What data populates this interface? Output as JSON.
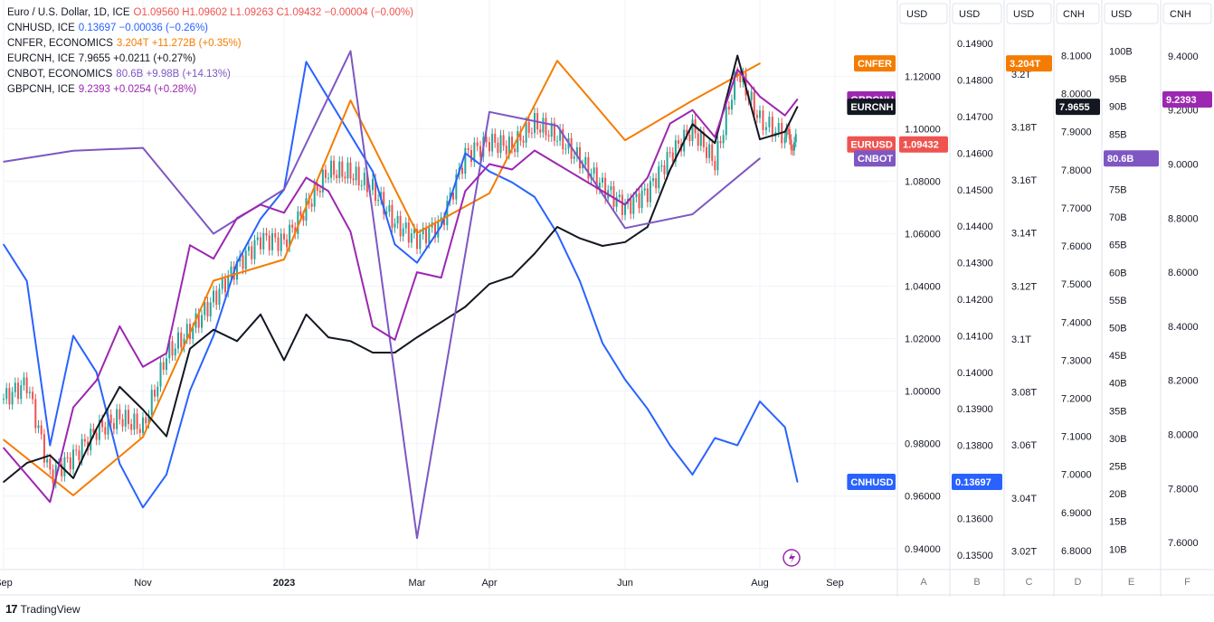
{
  "legend": [
    {
      "name": "Euro / U.S. Dollar, 1D, ICE",
      "values": "O1.09560  H1.09602  L1.09263  C1.09432  −0.00004 (−0.00%)",
      "color": "#ef5350"
    },
    {
      "name": "CNHUSD, ICE",
      "values": "0.13697  −0.00036 (−0.26%)",
      "color": "#2962ff"
    },
    {
      "name": "CNFER, ECONOMICS",
      "values": "3.204T  +11.272B (+0.35%)",
      "color": "#f57c00"
    },
    {
      "name": "EURCNH, ICE",
      "values": "7.9655  +0.0211 (+0.27%)",
      "color": "#131722"
    },
    {
      "name": "CNBOT, ECONOMICS",
      "values": "80.6B  +9.98B (+14.13%)",
      "color": "#7e57c2"
    },
    {
      "name": "GBPCNH, ICE",
      "values": "9.2393  +0.0254 (+0.28%)",
      "color": "#9c27b0"
    }
  ],
  "brand": "TradingView",
  "chart_data": {
    "type": "line",
    "title": "Euro / U.S. Dollar, 1D, ICE",
    "x_ticks": [
      "Sep",
      "Nov",
      "2023",
      "Mar",
      "Apr",
      "Jun",
      "Aug",
      "Sep"
    ],
    "x_tick_index": [
      0,
      60,
      120,
      180,
      210,
      270,
      330,
      360
    ],
    "x_range": [
      0,
      360
    ],
    "axes": [
      {
        "id": "A",
        "unit": "USD",
        "range": [
          0.932,
          1.138
        ],
        "ticks": [
          "1.12000",
          "1.10000",
          "1.08000",
          "1.06000",
          "1.04000",
          "1.02000",
          "1.00000",
          "0.98000",
          "0.96000",
          "0.94000"
        ],
        "tick_values": [
          1.12,
          1.1,
          1.08,
          1.06,
          1.04,
          1.02,
          1.0,
          0.98,
          0.96,
          0.94
        ]
      },
      {
        "id": "B",
        "unit": "USD",
        "range": [
          0.1346,
          0.1494
        ],
        "ticks": [
          "0.14900",
          "0.14800",
          "0.14700",
          "0.14600",
          "0.14500",
          "0.14400",
          "0.14300",
          "0.14200",
          "0.14100",
          "0.14000",
          "0.13900",
          "0.13800",
          "0.13700",
          "0.13600",
          "0.13500"
        ],
        "tick_values": [
          0.149,
          0.148,
          0.147,
          0.146,
          0.145,
          0.144,
          0.143,
          0.142,
          0.141,
          0.14,
          0.139,
          0.138,
          0.137,
          0.136,
          0.135
        ]
      },
      {
        "id": "C",
        "unit": "USD",
        "range": [
          3.013,
          3.217
        ],
        "ticks": [
          "3.2T",
          "3.18T",
          "3.16T",
          "3.14T",
          "3.12T",
          "3.1T",
          "3.08T",
          "3.06T",
          "3.04T",
          "3.02T"
        ],
        "tick_values": [
          3.2,
          3.18,
          3.16,
          3.14,
          3.12,
          3.1,
          3.08,
          3.06,
          3.04,
          3.02
        ]
      },
      {
        "id": "D",
        "unit": "CNH",
        "range": [
          6.75,
          8.17
        ],
        "ticks": [
          "8.1000",
          "8.0000",
          "7.9000",
          "7.8000",
          "7.7000",
          "7.6000",
          "7.5000",
          "7.4000",
          "7.3000",
          "7.2000",
          "7.1000",
          "7.0000",
          "6.9000",
          "6.8000"
        ],
        "tick_values": [
          8.1,
          8.0,
          7.9,
          7.8,
          7.7,
          7.6,
          7.5,
          7.4,
          7.3,
          7.2,
          7.1,
          7.0,
          6.9,
          6.8
        ]
      },
      {
        "id": "E",
        "unit": "USD",
        "range": [
          6.3,
          104
        ],
        "ticks": [
          "100B",
          "95B",
          "90B",
          "85B",
          "80B",
          "75B",
          "70B",
          "65B",
          "60B",
          "55B",
          "50B",
          "45B",
          "40B",
          "35B",
          "30B",
          "25B",
          "20B",
          "15B",
          "10B"
        ],
        "tick_values": [
          100,
          95,
          90,
          85,
          80,
          75,
          70,
          65,
          60,
          55,
          50,
          45,
          40,
          35,
          30,
          25,
          20,
          15,
          10
        ]
      },
      {
        "id": "F",
        "unit": "CNH",
        "range": [
          7.5,
          9.5
        ],
        "ticks": [
          "9.4000",
          "9.2000",
          "9.0000",
          "8.8000",
          "8.6000",
          "8.4000",
          "8.2000",
          "8.0000",
          "7.8000",
          "7.6000"
        ],
        "tick_values": [
          9.4,
          9.2,
          9.0,
          8.8,
          8.6,
          8.4,
          8.2,
          8.0,
          7.8,
          7.6
        ]
      }
    ],
    "series": [
      {
        "name": "EURUSD",
        "axis": "A",
        "kind": "candlestick",
        "color_up": "#26a69a",
        "color_down": "#ef5350",
        "last": "1.09432",
        "x": [
          0,
          10,
          20,
          30,
          40,
          50,
          60,
          70,
          80,
          90,
          100,
          110,
          120,
          130,
          140,
          150,
          160,
          170,
          180,
          190,
          200,
          210,
          220,
          230,
          240,
          250,
          260,
          270,
          280,
          290,
          300,
          310,
          320,
          330,
          340,
          345
        ],
        "values": [
          0.997,
          1.003,
          0.968,
          0.975,
          0.985,
          0.99,
          0.986,
          1.014,
          1.023,
          1.035,
          1.048,
          1.058,
          1.057,
          1.07,
          1.084,
          1.083,
          1.077,
          1.064,
          1.058,
          1.064,
          1.09,
          1.095,
          1.093,
          1.102,
          1.097,
          1.088,
          1.078,
          1.07,
          1.076,
          1.09,
          1.1,
          1.087,
          1.122,
          1.103,
          1.097,
          1.094
        ]
      },
      {
        "name": "CNHUSD",
        "axis": "B",
        "color": "#2962ff",
        "last": "0.13697",
        "x": [
          0,
          10,
          20,
          30,
          40,
          50,
          60,
          70,
          80,
          90,
          100,
          110,
          120,
          130,
          140,
          150,
          160,
          170,
          180,
          190,
          200,
          210,
          220,
          230,
          240,
          250,
          260,
          270,
          280,
          290,
          300,
          310,
          320,
          330,
          340,
          345
        ],
        "values": [
          0.1435,
          0.1425,
          0.138,
          0.141,
          0.14,
          0.1375,
          0.1363,
          0.1372,
          0.1395,
          0.141,
          0.143,
          0.1442,
          0.145,
          0.1485,
          0.1475,
          0.1465,
          0.1455,
          0.1435,
          0.143,
          0.144,
          0.146,
          0.1455,
          0.1452,
          0.1448,
          0.1438,
          0.1425,
          0.1408,
          0.1398,
          0.139,
          0.138,
          0.1372,
          0.1382,
          0.138,
          0.1392,
          0.1385,
          0.137
        ]
      },
      {
        "name": "CNFER",
        "axis": "C",
        "color": "#f57c00",
        "last": "3.204T",
        "x": [
          0,
          30,
          60,
          90,
          120,
          150,
          180,
          210,
          240,
          270,
          300,
          330
        ],
        "values": [
          3.062,
          3.041,
          3.063,
          3.122,
          3.13,
          3.19,
          3.14,
          3.155,
          3.205,
          3.175,
          3.19,
          3.204
        ]
      },
      {
        "name": "EURCNH",
        "axis": "D",
        "color": "#131722",
        "last": "7.9655",
        "x": [
          0,
          10,
          20,
          30,
          40,
          50,
          60,
          70,
          80,
          90,
          100,
          110,
          120,
          130,
          140,
          150,
          160,
          170,
          180,
          190,
          200,
          210,
          220,
          230,
          240,
          250,
          260,
          270,
          280,
          290,
          300,
          310,
          320,
          330,
          340,
          345
        ],
        "values": [
          6.98,
          7.03,
          7.05,
          6.99,
          7.12,
          7.23,
          7.17,
          7.1,
          7.33,
          7.38,
          7.35,
          7.42,
          7.3,
          7.42,
          7.36,
          7.35,
          7.32,
          7.32,
          7.36,
          7.4,
          7.44,
          7.5,
          7.52,
          7.58,
          7.65,
          7.62,
          7.6,
          7.61,
          7.65,
          7.8,
          7.92,
          7.87,
          8.1,
          7.88,
          7.9,
          7.9655
        ]
      },
      {
        "name": "CNBOT",
        "axis": "E",
        "color": "#7e57c2",
        "last": "80.6B",
        "x": [
          0,
          30,
          60,
          90,
          120,
          150,
          180,
          210,
          240,
          270,
          300,
          330
        ],
        "values": [
          80.0,
          82.0,
          82.5,
          67.0,
          75.0,
          100.0,
          12.0,
          89.0,
          86.5,
          68.0,
          70.5,
          80.6
        ]
      },
      {
        "name": "GBPCNH",
        "axis": "F",
        "color": "#9c27b0",
        "last": "9.2393",
        "x": [
          0,
          10,
          20,
          30,
          40,
          50,
          60,
          70,
          80,
          90,
          100,
          110,
          120,
          130,
          140,
          150,
          160,
          170,
          180,
          190,
          200,
          210,
          220,
          230,
          240,
          250,
          260,
          270,
          280,
          290,
          300,
          310,
          320,
          330,
          340,
          345
        ],
        "values": [
          7.95,
          7.85,
          7.75,
          8.1,
          8.2,
          8.4,
          8.25,
          8.3,
          8.7,
          8.65,
          8.8,
          8.85,
          8.82,
          8.95,
          8.9,
          8.75,
          8.4,
          8.35,
          8.6,
          8.58,
          8.9,
          9.0,
          8.98,
          9.05,
          9.0,
          8.95,
          8.9,
          8.85,
          8.95,
          9.15,
          9.2,
          9.1,
          9.35,
          9.25,
          9.18,
          9.2393
        ]
      }
    ],
    "axis_tags": [
      {
        "axis": "A",
        "text": "1.09432",
        "color": "#ef5350"
      },
      {
        "axis": "B",
        "text": "0.13697",
        "color": "#2962ff"
      },
      {
        "axis": "C",
        "text": "3.204T",
        "color": "#f57c00"
      },
      {
        "axis": "D",
        "text": "7.9655",
        "color": "#131722"
      },
      {
        "axis": "E",
        "text": "80.6B",
        "color": "#7e57c2"
      },
      {
        "axis": "F",
        "text": "9.2393",
        "color": "#9c27b0"
      }
    ],
    "series_labels": [
      {
        "text": "CNFER",
        "color": "#f57c00"
      },
      {
        "text": "GBPCNH",
        "color": "#9c27b0"
      },
      {
        "text": "EURCNH",
        "color": "#131722"
      },
      {
        "text": "EURUSD",
        "color": "#ef5350"
      },
      {
        "text": "CNBOT",
        "color": "#7e57c2"
      },
      {
        "text": "CNHUSD",
        "color": "#2962ff"
      }
    ]
  }
}
